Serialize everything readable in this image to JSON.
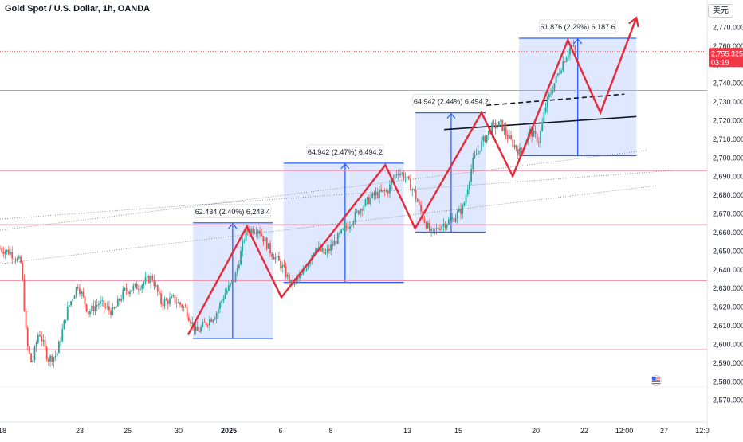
{
  "header": {
    "symbol_title": "Gold Spot / U.S. Dollar, 1h, OANDA",
    "currency_button": "美元"
  },
  "price_tag": {
    "price": "2,755.325",
    "countdown": "03:19"
  },
  "colors": {
    "up_candle": "#26a69a",
    "down_candle": "#ef5350",
    "zigzag": "#e8293a",
    "measure_box": "#2962ff",
    "horizontal_level": "#f18ca0",
    "trendline": "#131722"
  },
  "chart_data": {
    "type": "candlestick",
    "title": "Gold Spot / U.S. Dollar, 1h, OANDA",
    "y_axis": {
      "ylim": [
        2565,
        2780
      ],
      "ticks": [
        "2,770.000",
        "2,760.000",
        "2,750.000",
        "2,740.000",
        "2,730.000",
        "2,720.000",
        "2,710.000",
        "2,700.000",
        "2,690.000",
        "2,680.000",
        "2,670.000",
        "2,660.000",
        "2,650.000",
        "2,640.000",
        "2,630.000",
        "2,620.000",
        "2,610.000",
        "2,600.000",
        "2,590.000",
        "2,580.000",
        "2,570.000"
      ],
      "tick_values": [
        2770,
        2760,
        2750,
        2740,
        2730,
        2720,
        2710,
        2700,
        2690,
        2680,
        2670,
        2660,
        2650,
        2640,
        2630,
        2620,
        2610,
        2600,
        2590,
        2580,
        2570
      ]
    },
    "x_axis": {
      "ticks": [
        "18",
        "23",
        "26",
        "30",
        "2025",
        "6",
        "8",
        "13",
        "15",
        "20",
        "22",
        "12:00",
        "27",
        "12:0"
      ],
      "tick_x": [
        3,
        100,
        160,
        224,
        287,
        352,
        415,
        511,
        575,
        672,
        733,
        783,
        833,
        881
      ]
    },
    "x_frac_range": [
      0,
      1
    ],
    "grid": false,
    "price_path": [
      [
        0.0,
        2651
      ],
      [
        0.015,
        2649
      ],
      [
        0.03,
        2643
      ],
      [
        0.038,
        2600
      ],
      [
        0.045,
        2589
      ],
      [
        0.055,
        2607
      ],
      [
        0.068,
        2592
      ],
      [
        0.08,
        2594
      ],
      [
        0.095,
        2618
      ],
      [
        0.11,
        2632
      ],
      [
        0.125,
        2617
      ],
      [
        0.14,
        2622
      ],
      [
        0.16,
        2617
      ],
      [
        0.175,
        2628
      ],
      [
        0.195,
        2631
      ],
      [
        0.215,
        2636
      ],
      [
        0.228,
        2622
      ],
      [
        0.245,
        2624
      ],
      [
        0.262,
        2619
      ],
      [
        0.278,
        2606
      ],
      [
        0.29,
        2611
      ],
      [
        0.305,
        2616
      ],
      [
        0.318,
        2627
      ],
      [
        0.332,
        2635
      ],
      [
        0.348,
        2661
      ],
      [
        0.365,
        2662
      ],
      [
        0.382,
        2650
      ],
      [
        0.398,
        2642
      ],
      [
        0.412,
        2632
      ],
      [
        0.428,
        2637
      ],
      [
        0.445,
        2652
      ],
      [
        0.46,
        2648
      ],
      [
        0.478,
        2657
      ],
      [
        0.495,
        2665
      ],
      [
        0.512,
        2674
      ],
      [
        0.53,
        2680
      ],
      [
        0.548,
        2682
      ],
      [
        0.562,
        2693
      ],
      [
        0.572,
        2690
      ],
      [
        0.585,
        2682
      ],
      [
        0.598,
        2668
      ],
      [
        0.61,
        2659
      ],
      [
        0.625,
        2664
      ],
      [
        0.64,
        2667
      ],
      [
        0.655,
        2673
      ],
      [
        0.668,
        2697
      ],
      [
        0.68,
        2707
      ],
      [
        0.695,
        2716
      ],
      [
        0.708,
        2718
      ],
      [
        0.72,
        2710
      ],
      [
        0.735,
        2703
      ],
      [
        0.75,
        2714
      ],
      [
        0.762,
        2709
      ],
      [
        0.772,
        2728
      ],
      [
        0.785,
        2741
      ],
      [
        0.797,
        2752
      ],
      [
        0.808,
        2760
      ],
      [
        0.815,
        2756
      ]
    ],
    "zigzag_projection": [
      [
        0.266,
        2605
      ],
      [
        0.349,
        2663
      ],
      [
        0.398,
        2625
      ],
      [
        0.545,
        2696
      ],
      [
        0.587,
        2662
      ],
      [
        0.681,
        2724
      ],
      [
        0.725,
        2690
      ],
      [
        0.803,
        2763
      ],
      [
        0.849,
        2724
      ],
      [
        0.9,
        2775
      ]
    ],
    "measure_boxes": [
      {
        "label": "62.434 (2.40%) 6,243.4",
        "x0": 0.273,
        "x1": 0.386,
        "y_low": 2603,
        "y_high": 2665,
        "x_arrow": 0.329
      },
      {
        "label": "64.942 (2.47%) 6,494.2",
        "x0": 0.401,
        "x1": 0.571,
        "y_low": 2633,
        "y_high": 2697,
        "x_arrow": 0.488
      },
      {
        "label": "64.942 (2.44%) 6,494.2",
        "x0": 0.587,
        "x1": 0.687,
        "y_low": 2660,
        "y_high": 2724,
        "x_arrow": 0.638
      },
      {
        "label": "61.876 (2.29%) 6,187.6",
        "x0": 0.734,
        "x1": 0.9,
        "y_low": 2701,
        "y_high": 2764,
        "x_arrow": 0.817
      }
    ],
    "horizontal_levels": [
      2736,
      2693,
      2664,
      2634,
      2597
    ],
    "dotted_level": 2757,
    "trendlines": [
      {
        "style": "solid",
        "p1": [
          0.628,
          2715
        ],
        "p2": [
          0.9,
          2722
        ]
      },
      {
        "style": "dashed",
        "p1": [
          0.688,
          2728
        ],
        "p2": [
          0.883,
          2734
        ]
      },
      {
        "style": "dotted",
        "p1": [
          0.0,
          2661
        ],
        "p2": [
          0.916,
          2704
        ]
      },
      {
        "style": "dotted",
        "p1": [
          0.0,
          2643
        ],
        "p2": [
          0.93,
          2685
        ]
      },
      {
        "style": "dotted",
        "p1": [
          0.0,
          2667
        ],
        "p2": [
          0.95,
          2693
        ]
      }
    ]
  }
}
